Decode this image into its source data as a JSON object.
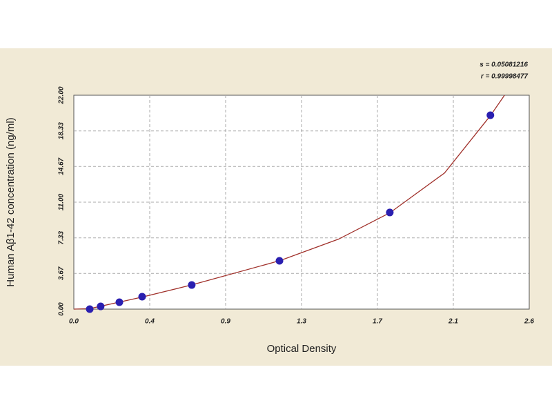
{
  "chart_data": {
    "type": "scatter",
    "annotations": [
      "s = 0.05081216",
      "r = 0.99998477"
    ],
    "x_label": "Optical Density",
    "y_label": "Human Aβ1-42 concentration (ng/ml)",
    "x": [
      0.09,
      0.152,
      0.258,
      0.387,
      0.668,
      1.165,
      1.79,
      2.36
    ],
    "values": [
      0.0,
      0.28,
      0.71,
      1.28,
      2.48,
      4.97,
      9.94,
      19.94
    ],
    "color": "#2a1fb0",
    "curve": {
      "color": "#a0302a",
      "x": [
        0,
        0.09,
        0.39,
        0.67,
        1.17,
        1.5,
        1.79,
        2.1,
        2.36,
        2.44
      ],
      "y": [
        0,
        0.05,
        1.25,
        2.5,
        5.0,
        7.2,
        9.9,
        14.0,
        19.9,
        22.0
      ]
    },
    "xlim": [
      0,
      2.58
    ],
    "xticks": [
      {
        "value": 0,
        "label": "0.0"
      },
      {
        "value": 0.43,
        "label": "0.4"
      },
      {
        "value": 0.86,
        "label": "0.9"
      },
      {
        "value": 1.29,
        "label": "1.3"
      },
      {
        "value": 1.72,
        "label": "1.7"
      },
      {
        "value": 2.15,
        "label": "2.1"
      },
      {
        "value": 2.58,
        "label": "2.6"
      }
    ],
    "ylim": [
      0,
      22
    ],
    "yticks": [
      {
        "value": 0,
        "label": "0.00"
      },
      {
        "value": 3.67,
        "label": "3.67"
      },
      {
        "value": 7.33,
        "label": "7.33"
      },
      {
        "value": 11,
        "label": "11.00"
      },
      {
        "value": 14.67,
        "label": "14.67"
      },
      {
        "value": 18.33,
        "label": "18.33"
      },
      {
        "value": 22,
        "label": "22.00"
      }
    ],
    "grid": true
  }
}
